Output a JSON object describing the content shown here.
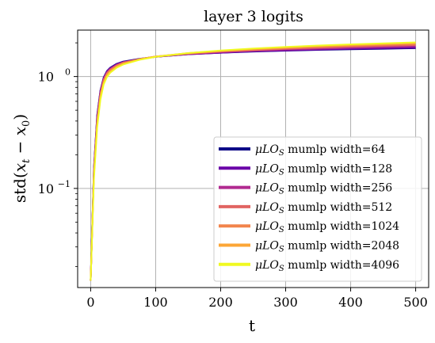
{
  "chart_data": {
    "type": "line",
    "title": "layer 3 logits",
    "xlabel": "t",
    "ylabel_main": "std(",
    "ylabel_math": "x",
    "ylabel_sub_t": "t",
    "ylabel_minus": " − ",
    "ylabel_sub_0": "0",
    "ylabel_close": ")",
    "y_scale": "log",
    "xlim": [
      -20,
      520
    ],
    "ylim": [
      0.013,
      2.6
    ],
    "grid": true,
    "legend_placement": "lower-right",
    "x_ticks": [
      {
        "value": 0,
        "label": "0"
      },
      {
        "value": 100,
        "label": "100"
      },
      {
        "value": 200,
        "label": "200"
      },
      {
        "value": 300,
        "label": "300"
      },
      {
        "value": 400,
        "label": "400"
      },
      {
        "value": 500,
        "label": "500"
      }
    ],
    "y_ticks": [
      {
        "value": 1.0,
        "base": "10",
        "exp": "0"
      },
      {
        "value": 0.1,
        "base": "10",
        "exp": "−1"
      }
    ],
    "legend_math": "μLO",
    "legend_sub": "S",
    "series": [
      {
        "name": "mumlp width=64",
        "color": "#0d0887",
        "x": [
          0,
          5,
          10,
          15,
          20,
          25,
          30,
          40,
          50,
          75,
          100,
          150,
          200,
          250,
          300,
          350,
          400,
          450,
          500
        ],
        "y": [
          0.015,
          0.15,
          0.45,
          0.75,
          0.98,
          1.12,
          1.2,
          1.3,
          1.36,
          1.44,
          1.5,
          1.58,
          1.63,
          1.67,
          1.7,
          1.73,
          1.75,
          1.77,
          1.79
        ]
      },
      {
        "name": "mumlp width=128",
        "color": "#6a00a8",
        "x": [
          0,
          5,
          10,
          15,
          20,
          25,
          30,
          40,
          50,
          75,
          100,
          150,
          200,
          250,
          300,
          350,
          400,
          450,
          500
        ],
        "y": [
          0.015,
          0.15,
          0.44,
          0.74,
          0.97,
          1.11,
          1.19,
          1.29,
          1.35,
          1.43,
          1.5,
          1.58,
          1.63,
          1.68,
          1.71,
          1.74,
          1.77,
          1.79,
          1.81
        ]
      },
      {
        "name": "mumlp width=256",
        "color": "#b12a90",
        "x": [
          0,
          5,
          10,
          15,
          20,
          25,
          30,
          40,
          50,
          75,
          100,
          150,
          200,
          250,
          300,
          350,
          400,
          450,
          500
        ],
        "y": [
          0.015,
          0.14,
          0.42,
          0.72,
          0.95,
          1.09,
          1.17,
          1.27,
          1.34,
          1.43,
          1.5,
          1.59,
          1.65,
          1.7,
          1.74,
          1.77,
          1.8,
          1.83,
          1.86
        ]
      },
      {
        "name": "mumlp width=512",
        "color": "#e16462",
        "x": [
          0,
          5,
          10,
          15,
          20,
          25,
          30,
          40,
          50,
          75,
          100,
          150,
          200,
          250,
          300,
          350,
          400,
          450,
          500
        ],
        "y": [
          0.015,
          0.14,
          0.41,
          0.7,
          0.93,
          1.07,
          1.15,
          1.26,
          1.33,
          1.43,
          1.51,
          1.6,
          1.67,
          1.72,
          1.77,
          1.81,
          1.85,
          1.88,
          1.91
        ]
      },
      {
        "name": "mumlp width=1024",
        "color": "#f2844b",
        "x": [
          0,
          5,
          10,
          15,
          20,
          25,
          30,
          40,
          50,
          75,
          100,
          150,
          200,
          250,
          300,
          350,
          400,
          450,
          500
        ],
        "y": [
          0.015,
          0.13,
          0.39,
          0.68,
          0.91,
          1.05,
          1.13,
          1.24,
          1.32,
          1.43,
          1.51,
          1.61,
          1.68,
          1.74,
          1.79,
          1.84,
          1.88,
          1.92,
          1.95
        ]
      },
      {
        "name": "mumlp width=2048",
        "color": "#fca636",
        "x": [
          0,
          5,
          10,
          15,
          20,
          25,
          30,
          40,
          50,
          75,
          100,
          150,
          200,
          250,
          300,
          350,
          400,
          450,
          500
        ],
        "y": [
          0.015,
          0.13,
          0.37,
          0.65,
          0.88,
          1.02,
          1.11,
          1.22,
          1.3,
          1.42,
          1.51,
          1.62,
          1.7,
          1.76,
          1.82,
          1.87,
          1.91,
          1.95,
          1.99
        ]
      },
      {
        "name": "mumlp width=4096",
        "color": "#f0f921",
        "x": [
          0,
          5,
          10,
          15,
          20,
          25,
          30,
          40,
          50,
          75,
          100,
          150,
          200,
          250,
          300,
          350,
          400,
          450,
          500
        ],
        "y": [
          0.015,
          0.12,
          0.35,
          0.62,
          0.85,
          0.99,
          1.08,
          1.2,
          1.28,
          1.41,
          1.5,
          1.62,
          1.71,
          1.78,
          1.84,
          1.89,
          1.94,
          1.98,
          2.02
        ]
      }
    ]
  }
}
